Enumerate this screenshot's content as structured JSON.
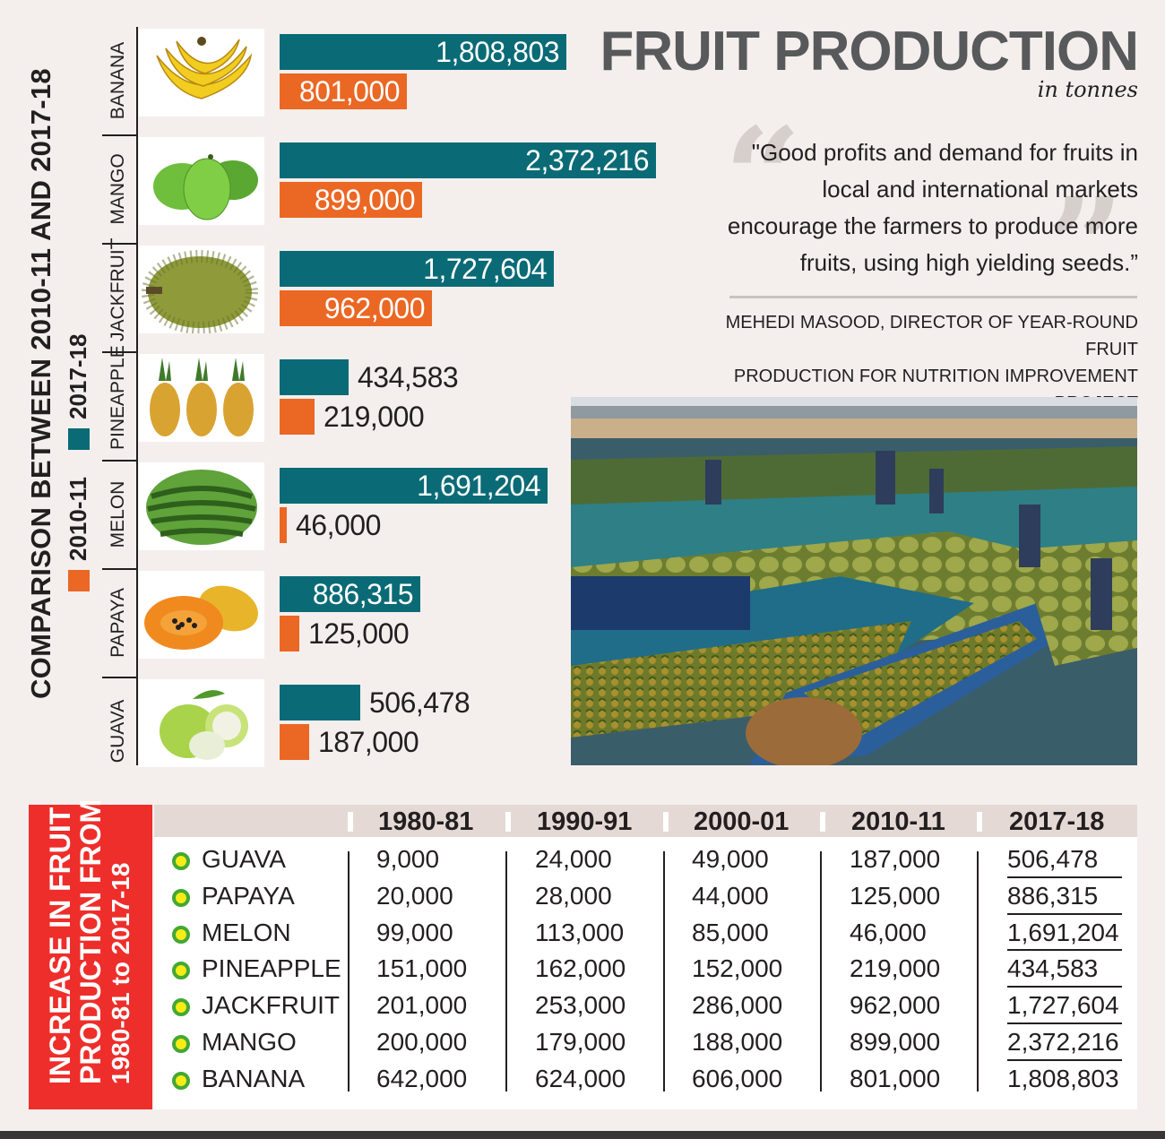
{
  "header": {
    "title": "FRUIT PRODUCTION",
    "unit": "in tonnes"
  },
  "quote": {
    "text": "\"Good profits and demand for fruits in local and international markets encourage the farmers to produce more fruits, using high yielding seeds.”",
    "attribution_line1": "MEHEDI MASOOD, DIRECTOR OF YEAR-ROUND FRUIT",
    "attribution_line2": "PRODUCTION FOR NUTRITION IMPROVEMENT PROJECT"
  },
  "comparison_title": "COMPARISON BETWEEN 2010-11 AND 2017-18",
  "legend": {
    "items": [
      {
        "label": "2010-11",
        "color": "#eb6724"
      },
      {
        "label": "2017-18",
        "color": "#0a6b76"
      }
    ]
  },
  "table": {
    "side_title_line1": "INCREASE IN FRUIT",
    "side_title_line2": "PRODUCTION FROM",
    "side_title_line3": "1980-81 to 2017-18",
    "columns": [
      "1980-81",
      "1990-91",
      "2000-01",
      "2010-11",
      "2017-18"
    ],
    "rows": [
      {
        "name": "GUAVA",
        "values": [
          "9,000",
          "24,000",
          "49,000",
          "187,000",
          "506,478"
        ]
      },
      {
        "name": "PAPAYA",
        "values": [
          "20,000",
          "28,000",
          "44,000",
          "125,000",
          "886,315"
        ]
      },
      {
        "name": "MELON",
        "values": [
          "99,000",
          "113,000",
          "85,000",
          "46,000",
          "1,691,204"
        ]
      },
      {
        "name": "PINEAPPLE",
        "values": [
          "151,000",
          "162,000",
          "152,000",
          "219,000",
          "434,583"
        ]
      },
      {
        "name": "JACKFRUIT",
        "values": [
          "201,000",
          "253,000",
          "286,000",
          "962,000",
          "1,727,604"
        ]
      },
      {
        "name": "MANGO",
        "values": [
          "200,000",
          "179,000",
          "188,000",
          "899,000",
          "2,372,216"
        ]
      },
      {
        "name": "BANANA",
        "values": [
          "642,000",
          "624,000",
          "606,000",
          "801,000",
          "1,808,803"
        ]
      }
    ]
  },
  "chart_data": {
    "type": "bar",
    "orientation": "horizontal",
    "title": "COMPARISON BETWEEN 2010-11 AND 2017-18",
    "unit": "tonnes",
    "categories": [
      "BANANA",
      "MANGO",
      "JACKFRUIT",
      "PINEAPPLE",
      "MELON",
      "PAPAYA",
      "GUAVA"
    ],
    "series": [
      {
        "name": "2017-18",
        "color": "#0a6b76",
        "values": [
          1808803,
          2372216,
          1727604,
          434583,
          1691204,
          886315,
          506478
        ],
        "labels": [
          "1,808,803",
          "2,372,216",
          "1,727,604",
          "434,583",
          "1,691,204",
          "886,315",
          "506,478"
        ]
      },
      {
        "name": "2010-11",
        "color": "#eb6724",
        "values": [
          801000,
          899000,
          962000,
          219000,
          46000,
          125000,
          187000
        ],
        "labels": [
          "801,000",
          "899,000",
          "962,000",
          "219,000",
          "46,000",
          "125,000",
          "187,000"
        ]
      }
    ],
    "xlim": [
      0,
      2500000
    ],
    "legend": "left"
  },
  "icons": {
    "thumbnails": [
      "banana-icon",
      "mango-icon",
      "jackfruit-icon",
      "pineapple-icon",
      "melon-icon",
      "papaya-icon",
      "guava-icon"
    ],
    "photo": "floating-fruit-market-photo"
  }
}
